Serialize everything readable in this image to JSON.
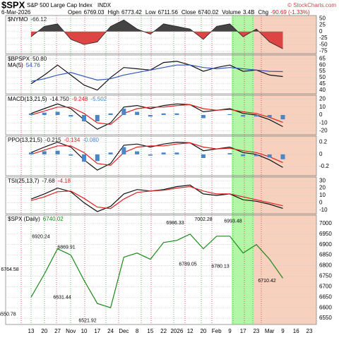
{
  "header": {
    "symbol": "$SPX",
    "name": "S&P 500 Large Cap Index",
    "exchange": "INDX",
    "credit": "© StockCharts.com",
    "date": "6-Mar-2026",
    "fields": [
      {
        "label": "Open",
        "value": "6769.03"
      },
      {
        "label": "High",
        "value": "6773.42"
      },
      {
        "label": "Low",
        "value": "6711.56"
      },
      {
        "label": "Close",
        "value": "6740.02"
      },
      {
        "label": "Volume",
        "value": "3.4B"
      },
      {
        "label": "Chg",
        "value": "-90.69 (-1.33%)"
      }
    ]
  },
  "categories": [
    "13",
    "20",
    "27",
    "Nov",
    "10",
    "17",
    "24",
    "Dec",
    "8",
    "15",
    "22",
    "2026",
    "12",
    "20",
    "Feb",
    "9",
    "17",
    "23",
    "Mar",
    "9",
    "16",
    "23"
  ],
  "chart_data": [
    {
      "type": "area",
      "ylim": [
        -85,
        62
      ],
      "yticks": [
        50,
        25,
        0,
        -25,
        -50,
        -75
      ],
      "grid": true,
      "series": [
        {
          "name": "$NYMO",
          "color": "#333333",
          "values": [
            -20,
            20,
            30,
            -30,
            -50,
            -40,
            20,
            45,
            10,
            -10,
            30,
            20,
            10,
            -30,
            20,
            30,
            -20,
            10,
            -40,
            -66.12,
            null,
            null
          ]
        }
      ]
    },
    {
      "type": "line",
      "ylim": [
        37,
        68
      ],
      "yticks": [
        65,
        60,
        55,
        50,
        45,
        40
      ],
      "grid": true,
      "series": [
        {
          "name": "$BPSPX",
          "color": "#111111",
          "values": [
            45,
            52,
            60,
            52,
            44,
            40,
            50,
            58,
            57,
            56,
            62,
            63,
            60,
            55,
            58,
            60,
            55,
            56,
            52,
            50.8,
            null,
            null
          ],
          "value_labels": [
            null,
            null,
            null,
            null,
            null,
            null,
            null,
            null,
            null,
            null,
            null,
            null,
            null,
            null,
            null,
            null,
            null,
            null,
            null,
            "50.80",
            null,
            null
          ]
        },
        {
          "name": "MA(5)",
          "color": "#3355bb",
          "values": [
            47,
            49,
            52,
            54,
            51,
            48,
            49,
            52,
            54,
            56,
            58,
            60,
            60,
            58,
            57,
            58,
            57,
            56,
            55,
            54.76,
            null,
            null
          ]
        }
      ]
    },
    {
      "type": "line",
      "ylim": [
        -25,
        25
      ],
      "yticks": [
        20,
        10,
        0,
        -10,
        -20
      ],
      "grid": true,
      "series": [
        {
          "name": "MACD(13,21,5)",
          "color": "#111111",
          "values": [
            2,
            8,
            14,
            8,
            -6,
            -18,
            -10,
            10,
            12,
            8,
            12,
            14,
            13,
            4,
            6,
            8,
            2,
            0,
            -6,
            -14.75,
            null,
            null
          ],
          "value_labels": [
            null,
            null,
            null,
            null,
            null,
            null,
            null,
            null,
            null,
            null,
            null,
            null,
            null,
            null,
            null,
            null,
            null,
            null,
            null,
            "-14.750",
            null,
            null
          ]
        },
        {
          "color": "#dd2222",
          "values": [
            0,
            5,
            10,
            10,
            2,
            -10,
            -12,
            2,
            8,
            10,
            10,
            12,
            13,
            8,
            6,
            7,
            4,
            2,
            -3,
            -9.248,
            null,
            null
          ]
        },
        {
          "type": "bar",
          "color": "#4a86c8",
          "values": [
            2,
            3,
            4,
            -2,
            -8,
            -8,
            2,
            8,
            4,
            -2,
            2,
            2,
            0,
            -4,
            0,
            1,
            -2,
            -2,
            -3,
            -5.502,
            null,
            null
          ]
        }
      ]
    },
    {
      "type": "line",
      "ylim": [
        -0.35,
        0.3
      ],
      "yticks": [
        0.2,
        0,
        -0.2
      ],
      "grid": true,
      "series": [
        {
          "name": "PPO(13,21,5)",
          "color": "#111111",
          "values": [
            0.03,
            0.12,
            0.2,
            0.12,
            -0.09,
            -0.26,
            -0.15,
            0.15,
            0.17,
            0.12,
            0.17,
            0.2,
            0.19,
            0.06,
            0.09,
            0.12,
            0.03,
            0,
            -0.09,
            -0.215,
            null,
            null
          ]
        },
        {
          "color": "#dd2222",
          "values": [
            0,
            0.07,
            0.14,
            0.14,
            0.03,
            -0.15,
            -0.18,
            0.03,
            0.12,
            0.14,
            0.14,
            0.17,
            0.19,
            0.12,
            0.09,
            0.1,
            0.06,
            0.03,
            -0.04,
            -0.134,
            null,
            null
          ]
        },
        {
          "type": "bar",
          "color": "#4a86c8",
          "values": [
            0.03,
            0.05,
            0.06,
            -0.02,
            -0.12,
            -0.11,
            0.03,
            0.12,
            0.05,
            -0.02,
            0.03,
            0.03,
            0,
            -0.06,
            0,
            0.02,
            -0.03,
            -0.03,
            -0.05,
            -0.08,
            null,
            null
          ],
          "value_labels": [
            null,
            null,
            null,
            null,
            null,
            null,
            null,
            null,
            null,
            null,
            null,
            null,
            null,
            null,
            null,
            null,
            null,
            null,
            null,
            "-0.080",
            null,
            null
          ]
        }
      ]
    },
    {
      "type": "line",
      "ylim": [
        -15,
        35
      ],
      "yticks": [
        30,
        20,
        10,
        0,
        -10
      ],
      "grid": true,
      "series": [
        {
          "name": "TSI(25,13,7)",
          "color": "#111111",
          "values": [
            5,
            12,
            20,
            15,
            0,
            -12,
            -5,
            12,
            18,
            16,
            18,
            22,
            24,
            12,
            10,
            12,
            4,
            2,
            -2,
            -7.68,
            null,
            null
          ]
        },
        {
          "color": "#dd2222",
          "values": [
            3,
            8,
            15,
            16,
            6,
            -6,
            -8,
            5,
            14,
            16,
            17,
            20,
            22,
            16,
            12,
            12,
            8,
            4,
            0,
            -4.18,
            null,
            null
          ]
        }
      ]
    },
    {
      "type": "line",
      "ylim": [
        6520,
        7040
      ],
      "yticks": [
        7000,
        6950,
        6900,
        6850,
        6800,
        6750,
        6700,
        6650,
        6600,
        6550
      ],
      "grid": true,
      "series": [
        {
          "name": "$SPX (Daily)",
          "color": "#1a8a1a",
          "values": [
            6650,
            6760,
            6880,
            6850,
            6730,
            6620,
            6600,
            6840,
            6860,
            6830,
            6910,
            6920,
            6950,
            6880,
            6940,
            6940,
            6860,
            6900,
            6830,
            6740.02,
            null,
            null
          ]
        }
      ],
      "annotations": [
        6764.58,
        6920.24,
        6869.91,
        6631.44,
        6550.78,
        6521.92,
        6986.33,
        7002.28,
        6993.48,
        6789.05,
        6780.13,
        6710.42
      ]
    }
  ]
}
